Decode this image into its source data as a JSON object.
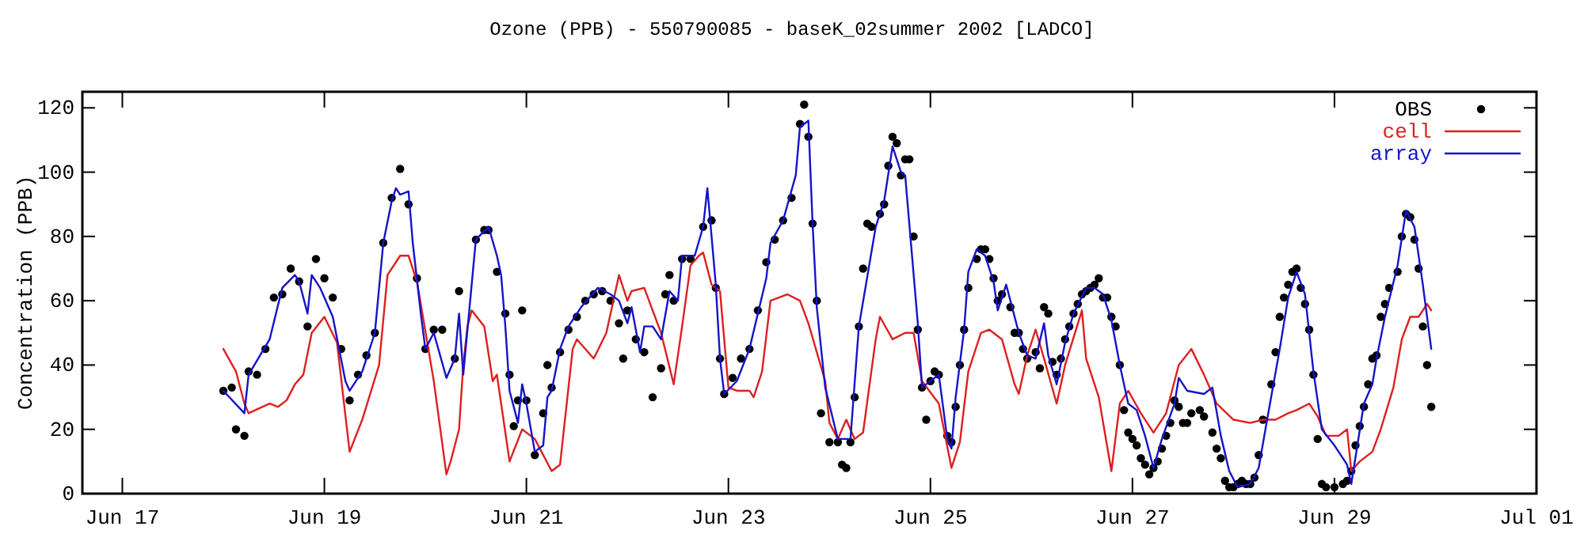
{
  "chart_data": {
    "type": "line",
    "title": "Ozone (PPB) - 550790085 - baseK_02summer 2002 [LADCO]",
    "ylabel": "Concentration (PPB)",
    "xlim": [
      "2002-06-16T14:30",
      "2002-07-01"
    ],
    "ylim": [
      0,
      125
    ],
    "xticks": [
      {
        "value": "2002-06-17",
        "label": "Jun 17"
      },
      {
        "value": "2002-06-19",
        "label": "Jun 19"
      },
      {
        "value": "2002-06-21",
        "label": "Jun 21"
      },
      {
        "value": "2002-06-23",
        "label": "Jun 23"
      },
      {
        "value": "2002-06-25",
        "label": "Jun 25"
      },
      {
        "value": "2002-06-27",
        "label": "Jun 27"
      },
      {
        "value": "2002-06-29",
        "label": "Jun 29"
      },
      {
        "value": "2002-07-01",
        "label": "Jul 01"
      }
    ],
    "yticks": [
      0,
      20,
      40,
      60,
      80,
      100,
      120
    ],
    "grid": false,
    "legend": "top right",
    "line_style": "solid",
    "series": [
      {
        "name": "OBS",
        "type": "scatter",
        "marker": "circle",
        "color": "#000000",
        "x": [
          "2002-06-18T00:00",
          "2002-06-18T02:00",
          "2002-06-18T03:00",
          "2002-06-18T05:00",
          "2002-06-18T06:00",
          "2002-06-18T08:00",
          "2002-06-18T10:00",
          "2002-06-18T12:00",
          "2002-06-18T14:00",
          "2002-06-18T16:00",
          "2002-06-18T18:00",
          "2002-06-18T20:00",
          "2002-06-18T22:00",
          "2002-06-19T00:00",
          "2002-06-19T02:00",
          "2002-06-19T04:00",
          "2002-06-19T06:00",
          "2002-06-19T08:00",
          "2002-06-19T10:00",
          "2002-06-19T12:00",
          "2002-06-19T14:00",
          "2002-06-19T16:00",
          "2002-06-19T18:00",
          "2002-06-19T20:00",
          "2002-06-19T22:00",
          "2002-06-20T00:00",
          "2002-06-20T02:00",
          "2002-06-20T04:00",
          "2002-06-20T07:00",
          "2002-06-20T08:00",
          "2002-06-20T12:00",
          "2002-06-20T14:00",
          "2002-06-20T15:00",
          "2002-06-20T17:00",
          "2002-06-20T19:00",
          "2002-06-20T20:00",
          "2002-06-20T21:00",
          "2002-06-20T22:00",
          "2002-06-20T23:00",
          "2002-06-21T00:00",
          "2002-06-21T02:00",
          "2002-06-21T04:00",
          "2002-06-21T05:00",
          "2002-06-21T06:00",
          "2002-06-21T08:00",
          "2002-06-21T10:00",
          "2002-06-21T12:00",
          "2002-06-21T14:00",
          "2002-06-21T16:00",
          "2002-06-21T18:00",
          "2002-06-21T20:00",
          "2002-06-21T22:00",
          "2002-06-21T23:00",
          "2002-06-22T00:00",
          "2002-06-22T02:00",
          "2002-06-22T04:00",
          "2002-06-22T06:00",
          "2002-06-22T08:00",
          "2002-06-22T09:00",
          "2002-06-22T10:00",
          "2002-06-22T11:00",
          "2002-06-22T13:00",
          "2002-06-22T15:00",
          "2002-06-22T18:00",
          "2002-06-22T20:00",
          "2002-06-22T21:00",
          "2002-06-22T22:00",
          "2002-06-22T23:00",
          "2002-06-23T01:00",
          "2002-06-23T03:00",
          "2002-06-23T05:00",
          "2002-06-23T07:00",
          "2002-06-23T09:00",
          "2002-06-23T11:00",
          "2002-06-23T13:00",
          "2002-06-23T15:00",
          "2002-06-23T17:00",
          "2002-06-23T18:00",
          "2002-06-23T19:00",
          "2002-06-23T20:00",
          "2002-06-23T21:00",
          "2002-06-23T22:00",
          "2002-06-24T00:00",
          "2002-06-24T02:00",
          "2002-06-24T03:00",
          "2002-06-24T04:00",
          "2002-06-24T05:00",
          "2002-06-24T06:00",
          "2002-06-24T07:00",
          "2002-06-24T08:00",
          "2002-06-24T09:00",
          "2002-06-24T10:00",
          "2002-06-24T12:00",
          "2002-06-24T13:00",
          "2002-06-24T14:00",
          "2002-06-24T15:00",
          "2002-06-24T16:00",
          "2002-06-24T17:00",
          "2002-06-24T18:00",
          "2002-06-24T19:00",
          "2002-06-24T20:00",
          "2002-06-24T21:00",
          "2002-06-24T22:00",
          "2002-06-24T23:00",
          "2002-06-25T00:00",
          "2002-06-25T01:00",
          "2002-06-25T02:00",
          "2002-06-25T04:00",
          "2002-06-25T05:00",
          "2002-06-25T06:00",
          "2002-06-25T07:00",
          "2002-06-25T08:00",
          "2002-06-25T09:00",
          "2002-06-25T11:00",
          "2002-06-25T12:00",
          "2002-06-25T13:00",
          "2002-06-25T14:00",
          "2002-06-25T15:00",
          "2002-06-25T16:00",
          "2002-06-25T17:00",
          "2002-06-25T19:00",
          "2002-06-25T20:00",
          "2002-06-25T21:00",
          "2002-06-25T22:00",
          "2002-06-25T23:00",
          "2002-06-26T01:00",
          "2002-06-26T02:00",
          "2002-06-26T03:00",
          "2002-06-26T04:00",
          "2002-06-26T05:00",
          "2002-06-26T06:00",
          "2002-06-26T07:00",
          "2002-06-26T08:00",
          "2002-06-26T09:00",
          "2002-06-26T10:00",
          "2002-06-26T11:00",
          "2002-06-26T12:00",
          "2002-06-26T13:00",
          "2002-06-26T14:00",
          "2002-06-26T15:00",
          "2002-06-26T16:00",
          "2002-06-26T17:00",
          "2002-06-26T18:00",
          "2002-06-26T19:00",
          "2002-06-26T20:00",
          "2002-06-26T21:00",
          "2002-06-26T22:00",
          "2002-06-26T23:00",
          "2002-06-27T00:00",
          "2002-06-27T01:00",
          "2002-06-27T02:00",
          "2002-06-27T03:00",
          "2002-06-27T04:00",
          "2002-06-27T05:00",
          "2002-06-27T06:00",
          "2002-06-27T07:00",
          "2002-06-27T08:00",
          "2002-06-27T09:00",
          "2002-06-27T10:00",
          "2002-06-27T11:00",
          "2002-06-27T12:00",
          "2002-06-27T13:00",
          "2002-06-27T14:00",
          "2002-06-27T16:00",
          "2002-06-27T17:00",
          "2002-06-27T19:00",
          "2002-06-27T20:00",
          "2002-06-27T21:00",
          "2002-06-27T22:00",
          "2002-06-27T23:00",
          "2002-06-28T00:00",
          "2002-06-28T01:00",
          "2002-06-28T02:00",
          "2002-06-28T03:00",
          "2002-06-28T04:00",
          "2002-06-28T05:00",
          "2002-06-28T06:00",
          "2002-06-28T07:00",
          "2002-06-28T09:00",
          "2002-06-28T10:00",
          "2002-06-28T11:00",
          "2002-06-28T12:00",
          "2002-06-28T13:00",
          "2002-06-28T14:00",
          "2002-06-28T15:00",
          "2002-06-28T16:00",
          "2002-06-28T17:00",
          "2002-06-28T18:00",
          "2002-06-28T19:00",
          "2002-06-28T20:00",
          "2002-06-28T21:00",
          "2002-06-28T22:00",
          "2002-06-29T00:00",
          "2002-06-29T02:00",
          "2002-06-29T03:00",
          "2002-06-29T04:00",
          "2002-06-29T05:00",
          "2002-06-29T06:00",
          "2002-06-29T07:00",
          "2002-06-29T08:00",
          "2002-06-29T09:00",
          "2002-06-29T10:00",
          "2002-06-29T11:00",
          "2002-06-29T12:00",
          "2002-06-29T13:00",
          "2002-06-29T15:00",
          "2002-06-29T16:00",
          "2002-06-29T17:00",
          "2002-06-29T18:00",
          "2002-06-29T19:00",
          "2002-06-29T20:00",
          "2002-06-29T21:00",
          "2002-06-29T22:00",
          "2002-06-29T23:00"
        ],
        "values": [
          32,
          33,
          20,
          18,
          38,
          37,
          45,
          61,
          62,
          70,
          66,
          52,
          73,
          67,
          61,
          45,
          29,
          37,
          43,
          50,
          78,
          92,
          101,
          90,
          67,
          45,
          51,
          51,
          42,
          63,
          79,
          82,
          82,
          69,
          56,
          37,
          21,
          29,
          57,
          29,
          12,
          25,
          40,
          33,
          44,
          51,
          55,
          60,
          62,
          63,
          60,
          53,
          42,
          57,
          48,
          44,
          30,
          39,
          62,
          68,
          60,
          73,
          73,
          83,
          85,
          64,
          42,
          31,
          36,
          42,
          45,
          57,
          72,
          79,
          85,
          92,
          115,
          121,
          111,
          84,
          60,
          25,
          16,
          16,
          9,
          8,
          16,
          30,
          52,
          70,
          84,
          83,
          87,
          90,
          102,
          111,
          109,
          99,
          104,
          104,
          80,
          51,
          33,
          23,
          35,
          38,
          37,
          18,
          16,
          27,
          40,
          51,
          64,
          73,
          76,
          76,
          73,
          67,
          60,
          62,
          58,
          50,
          50,
          45,
          42,
          44,
          39,
          58,
          56,
          41,
          37,
          42,
          48,
          52,
          56,
          59,
          62,
          63,
          64,
          65,
          67,
          61,
          61,
          55,
          52,
          40,
          26,
          19,
          17,
          15,
          11,
          9,
          6,
          8,
          10,
          14,
          18,
          22,
          29,
          27,
          22,
          22,
          25,
          26,
          24,
          19,
          14,
          11,
          4,
          2,
          2,
          3,
          4,
          3,
          3,
          5,
          12,
          23,
          34,
          44,
          55,
          61,
          65,
          69,
          70,
          64,
          59,
          51,
          37,
          17,
          3,
          2,
          2,
          3,
          4,
          7,
          15,
          21,
          27,
          34,
          42,
          43,
          55,
          59,
          64,
          69,
          80,
          87,
          86,
          79,
          70,
          52,
          40,
          27
        ]
      },
      {
        "name": "cell",
        "color": "#dd2020",
        "x": [
          "2002-06-18T00:00",
          "2002-06-18T03:00",
          "2002-06-18T05:00",
          "2002-06-18T06:00",
          "2002-06-18T11:00",
          "2002-06-18T13:00",
          "2002-06-18T15:00",
          "2002-06-18T17:00",
          "2002-06-18T19:00",
          "2002-06-18T21:00",
          "2002-06-19T00:00",
          "2002-06-19T03:00",
          "2002-06-19T06:00",
          "2002-06-19T09:00",
          "2002-06-19T13:00",
          "2002-06-19T15:00",
          "2002-06-19T18:00",
          "2002-06-19T20:00",
          "2002-06-19T22:00",
          "2002-06-20T02:00",
          "2002-06-20T05:00",
          "2002-06-20T06:00",
          "2002-06-20T08:00",
          "2002-06-20T09:00",
          "2002-06-20T10:00",
          "2002-06-20T11:00",
          "2002-06-20T14:00",
          "2002-06-20T16:00",
          "2002-06-20T17:00",
          "2002-06-20T20:00",
          "2002-06-20T23:00",
          "2002-06-21T02:00",
          "2002-06-21T06:00",
          "2002-06-21T08:00",
          "2002-06-21T11:00",
          "2002-06-21T12:00",
          "2002-06-21T16:00",
          "2002-06-21T19:00",
          "2002-06-21T22:00",
          "2002-06-22T00:00",
          "2002-06-22T01:00",
          "2002-06-22T04:00",
          "2002-06-22T08:00",
          "2002-06-22T11:00",
          "2002-06-22T13:00",
          "2002-06-22T15:00",
          "2002-06-22T17:00",
          "2002-06-22T18:00",
          "2002-06-22T20:00",
          "2002-06-22T22:00",
          "2002-06-23T00:00",
          "2002-06-23T02:00",
          "2002-06-23T05:00",
          "2002-06-23T06:00",
          "2002-06-23T08:00",
          "2002-06-23T10:00",
          "2002-06-23T14:00",
          "2002-06-23T17:00",
          "2002-06-23T19:00",
          "2002-06-23T23:00",
          "2002-06-24T00:00",
          "2002-06-24T02:00",
          "2002-06-24T04:00",
          "2002-06-24T06:00",
          "2002-06-24T08:00",
          "2002-06-24T11:00",
          "2002-06-24T12:00",
          "2002-06-24T15:00",
          "2002-06-24T18:00",
          "2002-06-24T20:00",
          "2002-06-24T22:00",
          "2002-06-25T02:00",
          "2002-06-25T05:00",
          "2002-06-25T07:00",
          "2002-06-25T09:00",
          "2002-06-25T12:00",
          "2002-06-25T14:00",
          "2002-06-25T17:00",
          "2002-06-25T20:00",
          "2002-06-25T21:00",
          "2002-06-25T23:00",
          "2002-06-26T01:00",
          "2002-06-26T03:00",
          "2002-06-26T06:00",
          "2002-06-26T08:00",
          "2002-06-26T12:00",
          "2002-06-26T13:00",
          "2002-06-26T16:00",
          "2002-06-26T19:00",
          "2002-06-26T21:00",
          "2002-06-26T23:00",
          "2002-06-27T02:00",
          "2002-06-27T05:00",
          "2002-06-27T08:00",
          "2002-06-27T11:00",
          "2002-06-27T14:00",
          "2002-06-27T17:00",
          "2002-06-27T20:00",
          "2002-06-28T00:00",
          "2002-06-28T04:00",
          "2002-06-28T07:00",
          "2002-06-28T10:00",
          "2002-06-28T13:00",
          "2002-06-28T15:00",
          "2002-06-28T18:00",
          "2002-06-28T20:00",
          "2002-06-28T22:00",
          "2002-06-29T01:00",
          "2002-06-29T03:00",
          "2002-06-29T04:00",
          "2002-06-29T06:00",
          "2002-06-29T09:00",
          "2002-06-29T11:00",
          "2002-06-29T14:00",
          "2002-06-29T16:00",
          "2002-06-29T18:00",
          "2002-06-29T20:00",
          "2002-06-29T22:00",
          "2002-06-29T23:00"
        ],
        "values": [
          45,
          38,
          28,
          25,
          28,
          27,
          29,
          34,
          37,
          50,
          55,
          47,
          13,
          23,
          40,
          68,
          74,
          74,
          66,
          35,
          6,
          10,
          20,
          40,
          52,
          57,
          52,
          35,
          37,
          10,
          20,
          17,
          7,
          9,
          45,
          48,
          42,
          50,
          68,
          60,
          63,
          64,
          50,
          34,
          52,
          71,
          74,
          75,
          65,
          63,
          33,
          32,
          32,
          30,
          38,
          60,
          62,
          60,
          53,
          35,
          22,
          17,
          23,
          17,
          19,
          48,
          55,
          48,
          50,
          50,
          35,
          28,
          8,
          16,
          38,
          50,
          51,
          48,
          34,
          31,
          43,
          51,
          42,
          28,
          40,
          57,
          42,
          30,
          7,
          28,
          32,
          25,
          19,
          25,
          40,
          45,
          37,
          28,
          23,
          22,
          23,
          23,
          25,
          26,
          28,
          24,
          18,
          18,
          20,
          7,
          10,
          13,
          20,
          33,
          48,
          55,
          55,
          59,
          57
        ]
      },
      {
        "name": "array",
        "color": "#1414c8",
        "x": [
          "2002-06-18T00:00",
          "2002-06-18T05:00",
          "2002-06-18T06:00",
          "2002-06-18T11:00",
          "2002-06-18T14:00",
          "2002-06-18T17:00",
          "2002-06-18T18:00",
          "2002-06-18T20:00",
          "2002-06-18T21:00",
          "2002-06-18T23:00",
          "2002-06-19T02:00",
          "2002-06-19T05:00",
          "2002-06-19T06:00",
          "2002-06-19T09:00",
          "2002-06-19T12:00",
          "2002-06-19T14:00",
          "2002-06-19T16:00",
          "2002-06-19T17:00",
          "2002-06-19T18:00",
          "2002-06-19T20:00",
          "2002-06-19T21:00",
          "2002-06-19T23:00",
          "2002-06-20T00:00",
          "2002-06-20T02:00",
          "2002-06-20T05:00",
          "2002-06-20T07:00",
          "2002-06-20T08:00",
          "2002-06-20T09:00",
          "2002-06-20T12:00",
          "2002-06-20T15:00",
          "2002-06-20T17:00",
          "2002-06-20T18:00",
          "2002-06-20T19:00",
          "2002-06-20T20:00",
          "2002-06-20T22:00",
          "2002-06-20T23:00",
          "2002-06-21T00:00",
          "2002-06-21T02:00",
          "2002-06-21T04:00",
          "2002-06-21T05:00",
          "2002-06-21T06:00",
          "2002-06-21T08:00",
          "2002-06-21T10:00",
          "2002-06-21T13:00",
          "2002-06-21T17:00",
          "2002-06-21T20:00",
          "2002-06-21T22:00",
          "2002-06-22T00:00",
          "2002-06-22T01:00",
          "2002-06-22T03:00",
          "2002-06-22T04:00",
          "2002-06-22T06:00",
          "2002-06-22T08:00",
          "2002-06-22T10:00",
          "2002-06-22T12:00",
          "2002-06-22T13:00",
          "2002-06-22T16:00",
          "2002-06-22T18:00",
          "2002-06-22T19:00",
          "2002-06-22T21:00",
          "2002-06-22T22:00",
          "2002-06-22T23:00",
          "2002-06-23T02:00",
          "2002-06-23T05:00",
          "2002-06-23T09:00",
          "2002-06-23T10:00",
          "2002-06-23T13:00",
          "2002-06-23T16:00",
          "2002-06-23T17:00",
          "2002-06-23T19:00",
          "2002-06-23T20:00",
          "2002-06-23T21:00",
          "2002-06-23T23:00",
          "2002-06-24T02:00",
          "2002-06-24T05:00",
          "2002-06-24T07:00",
          "2002-06-24T11:00",
          "2002-06-24T13:00",
          "2002-06-24T15:00",
          "2002-06-24T17:00",
          "2002-06-24T18:00",
          "2002-06-24T21:00",
          "2002-06-24T22:00",
          "2002-06-25T02:00",
          "2002-06-25T04:00",
          "2002-06-25T05:00",
          "2002-06-25T06:00",
          "2002-06-25T08:00",
          "2002-06-25T09:00",
          "2002-06-25T11:00",
          "2002-06-25T13:00",
          "2002-06-25T15:00",
          "2002-06-25T16:00",
          "2002-06-25T18:00",
          "2002-06-25T19:00",
          "2002-06-25T21:00",
          "2002-06-25T23:00",
          "2002-06-26T01:00",
          "2002-06-26T03:00",
          "2002-06-26T04:00",
          "2002-06-26T06:00",
          "2002-06-26T08:00",
          "2002-06-26T10:00",
          "2002-06-26T13:00",
          "2002-06-26T15:00",
          "2002-06-26T17:00",
          "2002-06-26T19:00",
          "2002-06-26T21:00",
          "2002-06-26T23:00",
          "2002-06-27T01:00",
          "2002-06-27T03:00",
          "2002-06-27T05:00",
          "2002-06-27T07:00",
          "2002-06-27T10:00",
          "2002-06-27T11:00",
          "2002-06-27T13:00",
          "2002-06-27T17:00",
          "2002-06-27T19:00",
          "2002-06-27T21:00",
          "2002-06-27T23:00",
          "2002-06-28T01:00",
          "2002-06-28T04:00",
          "2002-06-28T06:00",
          "2002-06-28T08:00",
          "2002-06-28T11:00",
          "2002-06-28T13:00",
          "2002-06-28T15:00",
          "2002-06-28T17:00",
          "2002-06-28T19:00",
          "2002-06-28T21:00",
          "2002-06-29T00:00",
          "2002-06-29T03:00",
          "2002-06-29T04:00",
          "2002-06-29T07:00",
          "2002-06-29T09:00",
          "2002-06-29T10:00",
          "2002-06-29T12:00",
          "2002-06-29T15:00",
          "2002-06-29T17:00",
          "2002-06-29T19:00",
          "2002-06-29T21:00",
          "2002-06-29T23:00"
        ],
        "values": [
          32,
          25,
          37,
          48,
          64,
          68,
          66,
          56,
          68,
          64,
          55,
          35,
          32,
          38,
          50,
          78,
          91,
          95,
          93,
          94,
          78,
          55,
          45,
          50,
          36,
          42,
          56,
          37,
          79,
          83,
          74,
          68,
          52,
          32,
          22,
          34,
          28,
          13,
          15,
          30,
          32,
          45,
          52,
          58,
          64,
          62,
          60,
          53,
          58,
          44,
          52,
          52,
          48,
          63,
          60,
          74,
          74,
          83,
          95,
          65,
          42,
          31,
          35,
          45,
          67,
          78,
          85,
          99,
          114,
          116,
          84,
          58,
          33,
          17,
          17,
          52,
          83,
          91,
          108,
          100,
          99,
          53,
          33,
          37,
          17,
          14,
          30,
          51,
          69,
          76,
          74,
          66,
          57,
          65,
          60,
          50,
          43,
          42,
          53,
          43,
          34,
          47,
          56,
          64,
          64,
          62,
          54,
          40,
          28,
          26,
          18,
          8,
          17,
          28,
          36,
          32,
          31,
          33,
          18,
          7,
          2,
          3,
          8,
          23,
          45,
          61,
          69,
          62,
          38,
          20,
          15,
          9,
          3,
          28,
          34,
          42,
          55,
          71,
          88,
          83,
          65,
          45
        ]
      }
    ]
  }
}
